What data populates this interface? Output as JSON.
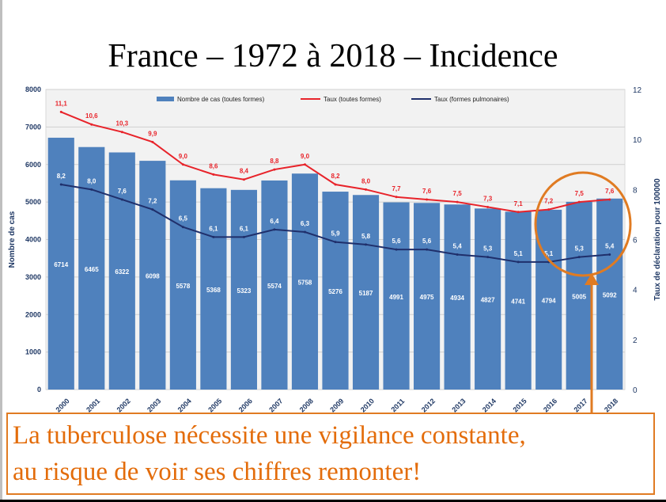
{
  "slide": {
    "title": "France – 1972 à 2018 – Incidence",
    "callout_line1": "La tuberculose nécessite une vigilance constante,",
    "callout_line2": "au risque de voir ses chiffres remonter!"
  },
  "colors": {
    "bar": "#4f81bd",
    "rate_all": "#e8232a",
    "rate_pulm": "#1f2f6b",
    "highlight": "#e07b22",
    "axis_text": "#1f3864"
  },
  "chart_data": {
    "type": "bar",
    "categories": [
      "2000",
      "2001",
      "2002",
      "2003",
      "2004",
      "2005",
      "2006",
      "2007",
      "2008",
      "2009",
      "2010",
      "2011",
      "2012",
      "2013",
      "2014",
      "2015",
      "2016",
      "2017",
      "2018"
    ],
    "ylabel": "Nombre de cas",
    "y2label": "Taux de déclaration pour 100000",
    "ylim": [
      0,
      8000
    ],
    "y2lim": [
      0,
      12
    ],
    "yticks": [
      0,
      1000,
      2000,
      3000,
      4000,
      5000,
      6000,
      7000,
      8000
    ],
    "y2ticks": [
      0,
      2,
      4,
      6,
      8,
      10,
      12
    ],
    "grid": true,
    "legend": "top",
    "series": [
      {
        "name": "Nombre de cas (toutes formes)",
        "kind": "bar",
        "axis": "left",
        "values": [
          6714,
          6465,
          6322,
          6098,
          5578,
          5368,
          5323,
          5574,
          5758,
          5276,
          5187,
          4991,
          4975,
          4934,
          4827,
          4741,
          4794,
          5005,
          5092
        ]
      },
      {
        "name": "Taux (toutes formes)",
        "kind": "line",
        "axis": "right",
        "values": [
          11.1,
          10.6,
          10.3,
          9.9,
          9.0,
          8.6,
          8.4,
          8.8,
          9.0,
          8.2,
          8.0,
          7.7,
          7.6,
          7.5,
          7.3,
          7.1,
          7.2,
          7.5,
          7.6
        ]
      },
      {
        "name": "Taux (formes pulmonaires)",
        "kind": "line",
        "axis": "right",
        "values": [
          8.2,
          8.0,
          7.6,
          7.2,
          6.5,
          6.1,
          6.1,
          6.4,
          6.3,
          5.9,
          5.8,
          5.6,
          5.6,
          5.4,
          5.3,
          5.1,
          5.1,
          5.3,
          5.4
        ]
      }
    ],
    "bar_labels": [
      "6714",
      "6465",
      "6322",
      "6098",
      "5578",
      "5368",
      "5323",
      "5574",
      "5758",
      "5276",
      "5187",
      "4991",
      "4975",
      "4934",
      "4827",
      "4741",
      "4794",
      "5005",
      "5092"
    ],
    "rate_all_labels": [
      "11,1",
      "10,6",
      "10,3",
      "9,9",
      "9,0",
      "8,6",
      "8,4",
      "8,8",
      "9,0",
      "8,2",
      "8,0",
      "7,7",
      "7,6",
      "7,5",
      "7,3",
      "7,1",
      "7,2",
      "7,5",
      "7,6"
    ],
    "rate_pulm_labels": [
      "8,2",
      "8,0",
      "7,6",
      "7,2",
      "6,5",
      "6,1",
      "6,1",
      "6,4",
      "6,3",
      "5,9",
      "5,8",
      "5,6",
      "5,6",
      "5,4",
      "5,3",
      "5,1",
      "5,1",
      "5,3",
      "5,4"
    ]
  }
}
